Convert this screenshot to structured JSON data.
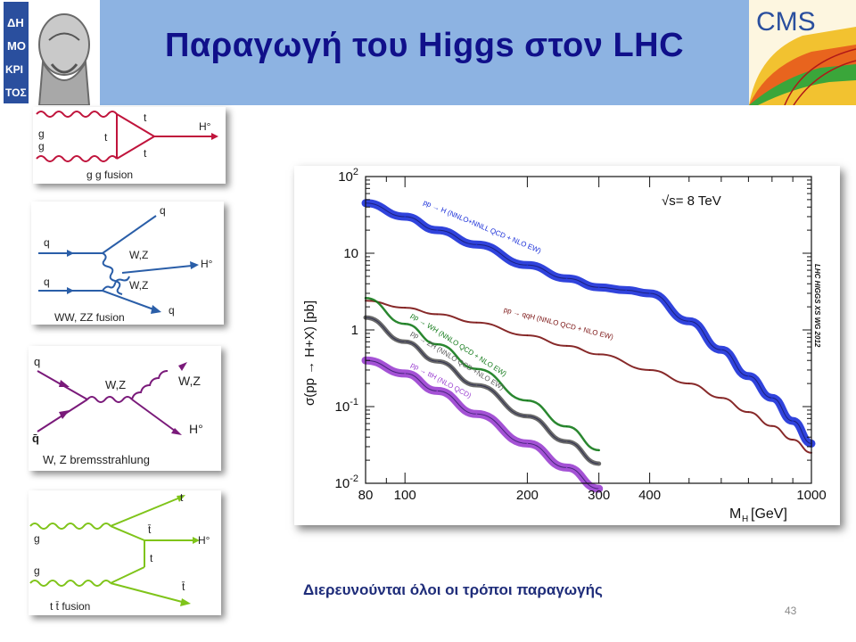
{
  "slide": {
    "title": "Παραγωγή του Higgs στον LHC",
    "caption": "Διερευνούνται όλοι οι τρόποι παραγωγής",
    "page_number": "43",
    "logo_left_text": [
      "ΔΗ",
      "ΜΟ",
      "ΚΡΙ",
      "ΤΟΣ"
    ],
    "logo_right_text": "CMS"
  },
  "diagrams": {
    "ggf": {
      "g_top": "g",
      "g_bottom": "g",
      "t_top": "t",
      "t_mid": "t",
      "t_bottom": "t",
      "higgs": "H°",
      "caption": "g g fusion"
    },
    "vbf": {
      "q_in_top": "q",
      "q_in_bottom": "q",
      "q_out_top": "q",
      "q_out_bottom": "q",
      "boson_top": "W,Z",
      "boson_bottom": "W,Z",
      "higgs": "H°",
      "caption": "WW, ZZ fusion"
    },
    "vh": {
      "q_in": "q",
      "qbar_in": "q̄",
      "boson_mid": "W,Z",
      "boson_out": "W,Z",
      "higgs": "H°",
      "caption": "W, Z bremsstrahlung"
    },
    "tth": {
      "t_top": "t",
      "tbar_mid": "t̄",
      "t_mid": "t",
      "tbar_bottom": "t̄",
      "g_top": "g",
      "g_bottom": "g",
      "higgs": "H°",
      "caption": "t t̄ fusion"
    }
  },
  "colors": {
    "header_bg": "#8db3e2",
    "title": "#10108a",
    "ggf": "#c0143c",
    "vbf": "#2a5ea8",
    "vh": "#7a1a7a",
    "tth": "#7fc41a",
    "series_ggH": "#1a2fd8",
    "series_qqH": "#7a1212",
    "series_WH": "#137a1a",
    "series_ZH": "#5a5a5a",
    "series_ttH": "#9a3fd0"
  },
  "chart_data": {
    "type": "line",
    "ylabel": "σ(pp → H+X) [pb]",
    "xlabel": "M_H [GeV]",
    "energy_label": "√s= 8 TeV",
    "watermark": "LHC HIGGS XS WG 2012",
    "x_scale": "log",
    "y_scale": "log",
    "xlim": [
      80,
      1000
    ],
    "ylim": [
      0.01,
      100
    ],
    "x_ticks": [
      80,
      100,
      200,
      300,
      400,
      1000
    ],
    "y_ticks": [
      0.01,
      0.1,
      1,
      10,
      100
    ],
    "y_tick_labels": [
      "10^-2",
      "10^-1",
      "1",
      "10",
      "10^2"
    ],
    "series": [
      {
        "name": "pp → H (NNLO+NNLL QCD + NLO EW)",
        "x": [
          80,
          100,
          120,
          150,
          200,
          250,
          300,
          350,
          400,
          500,
          600,
          700,
          800,
          900,
          1000
        ],
        "y": [
          45,
          30,
          20,
          13,
          7.0,
          4.7,
          3.6,
          3.3,
          3.0,
          1.3,
          0.55,
          0.25,
          0.13,
          0.065,
          0.033
        ]
      },
      {
        "name": "pp → qqH (NNLO QCD + NLO EW)",
        "x": [
          80,
          100,
          120,
          150,
          200,
          250,
          300,
          400,
          500,
          600,
          700,
          800,
          900,
          1000
        ],
        "y": [
          2.4,
          1.95,
          1.6,
          1.25,
          0.85,
          0.62,
          0.48,
          0.3,
          0.2,
          0.13,
          0.085,
          0.056,
          0.037,
          0.025
        ]
      },
      {
        "name": "pp → WH (NNLO QCD + NLO EW)",
        "x": [
          80,
          100,
          120,
          150,
          200,
          250,
          300
        ],
        "y": [
          2.6,
          1.2,
          0.65,
          0.31,
          0.12,
          0.055,
          0.027
        ]
      },
      {
        "name": "pp → ZH (NNLO QCD +NLO EW)",
        "x": [
          80,
          100,
          120,
          150,
          200,
          250,
          300
        ],
        "y": [
          1.45,
          0.7,
          0.39,
          0.19,
          0.075,
          0.035,
          0.018
        ]
      },
      {
        "name": "pp → ttH (NLO QCD)",
        "x": [
          80,
          100,
          120,
          150,
          200,
          250,
          300
        ],
        "y": [
          0.4,
          0.27,
          0.16,
          0.08,
          0.033,
          0.016,
          0.0085
        ]
      }
    ]
  }
}
